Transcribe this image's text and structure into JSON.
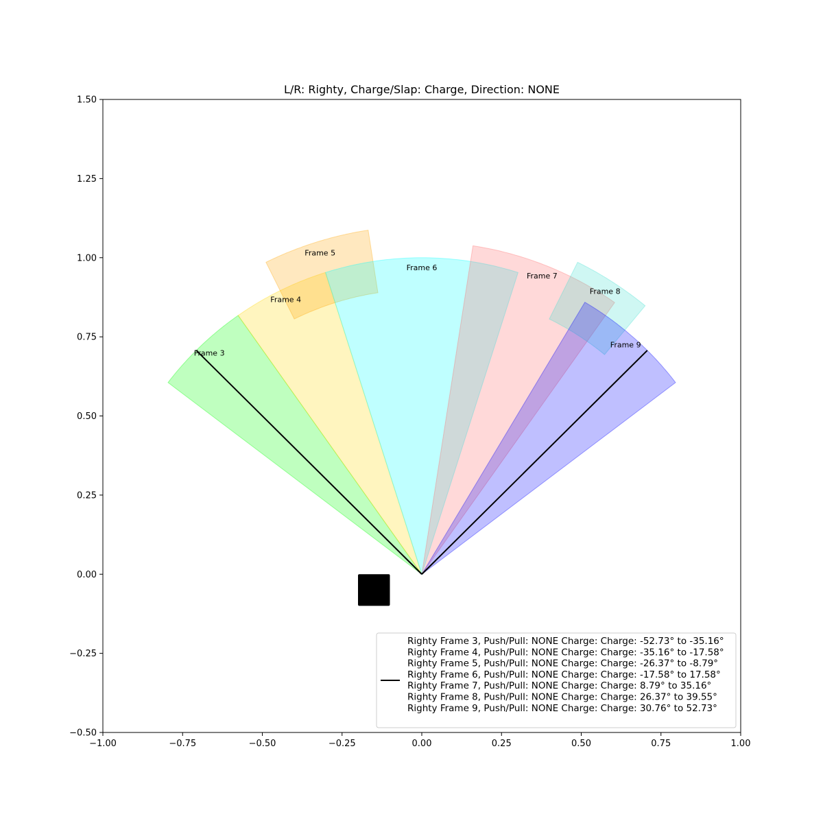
{
  "chart_data": {
    "type": "wedge",
    "title": "L/R: Righty, Charge/Slap: Charge, Direction: NONE",
    "xlim": [
      -1.0,
      1.0
    ],
    "ylim": [
      -0.5,
      1.5
    ],
    "xticks": [
      -1.0,
      -0.75,
      -0.5,
      -0.25,
      0.0,
      0.25,
      0.5,
      0.75,
      1.0
    ],
    "yticks": [
      -0.5,
      -0.25,
      0.0,
      0.25,
      0.5,
      0.75,
      1.0,
      1.25,
      1.5
    ],
    "xtick_labels": [
      "−1.00",
      "−0.75",
      "−0.50",
      "−0.25",
      "0.00",
      "0.25",
      "0.50",
      "0.75",
      "1.00"
    ],
    "ytick_labels": [
      "−0.50",
      "−0.25",
      "0.00",
      "0.25",
      "0.50",
      "0.75",
      "1.00",
      "1.25",
      "1.50"
    ],
    "grid": false,
    "legend_position": "lower-right",
    "origin": [
      0.0,
      0.0
    ],
    "frames": [
      {
        "label": "Frame 3",
        "theta_min": -52.73,
        "theta_max": -35.16,
        "r_inner": 0.0,
        "r_outer": 1.0,
        "color": "#00ff00",
        "alpha": 0.25
      },
      {
        "label": "Frame 4",
        "theta_min": -35.16,
        "theta_max": -17.58,
        "r_inner": 0.0,
        "r_outer": 1.0,
        "color": "#ffd700",
        "alpha": 0.25
      },
      {
        "label": "Frame 5",
        "theta_min": -26.37,
        "theta_max": -8.79,
        "r_inner": 0.9,
        "r_outer": 1.1,
        "color": "#ffa500",
        "alpha": 0.25
      },
      {
        "label": "Frame 6",
        "theta_min": -17.58,
        "theta_max": 17.58,
        "r_inner": 0.0,
        "r_outer": 1.0,
        "color": "#00ffff",
        "alpha": 0.25
      },
      {
        "label": "Frame 7",
        "theta_min": 8.79,
        "theta_max": 35.16,
        "r_inner": 0.0,
        "r_outer": 1.05,
        "color": "#ff6666",
        "alpha": 0.25
      },
      {
        "label": "Frame 8",
        "theta_min": 26.37,
        "theta_max": 39.55,
        "r_inner": 0.9,
        "r_outer": 1.1,
        "color": "#40e0d0",
        "alpha": 0.25
      },
      {
        "label": "Frame 9",
        "theta_min": 30.76,
        "theta_max": 52.73,
        "r_inner": 0.0,
        "r_outer": 1.0,
        "color": "#0000ff",
        "alpha": 0.25
      }
    ],
    "reference_lines": [
      {
        "angle_deg": -45.0,
        "length": 1.0,
        "color": "#000000"
      },
      {
        "angle_deg": 45.0,
        "length": 1.0,
        "color": "#000000"
      }
    ],
    "marker": {
      "shape": "square",
      "x_range": [
        -0.2,
        -0.1
      ],
      "y_range": [
        -0.1,
        0.0
      ],
      "color": "#000000"
    },
    "legend_entries": [
      "Righty Frame 3, Push/Pull: NONE Charge: Charge: -52.73° to -35.16°",
      "Righty Frame 4, Push/Pull: NONE Charge: Charge: -35.16° to -17.58°",
      "Righty Frame 5, Push/Pull: NONE Charge: Charge: -26.37° to -8.79°",
      "Righty Frame 6, Push/Pull: NONE Charge: Charge: -17.58° to 17.58°",
      "Righty Frame 7, Push/Pull: NONE Charge: Charge: 8.79° to 35.16°",
      "Righty Frame 8, Push/Pull: NONE Charge: Charge: 26.37° to 39.55°",
      "Righty Frame 9, Push/Pull: NONE Charge: Charge: 30.76° to 52.73°"
    ]
  }
}
